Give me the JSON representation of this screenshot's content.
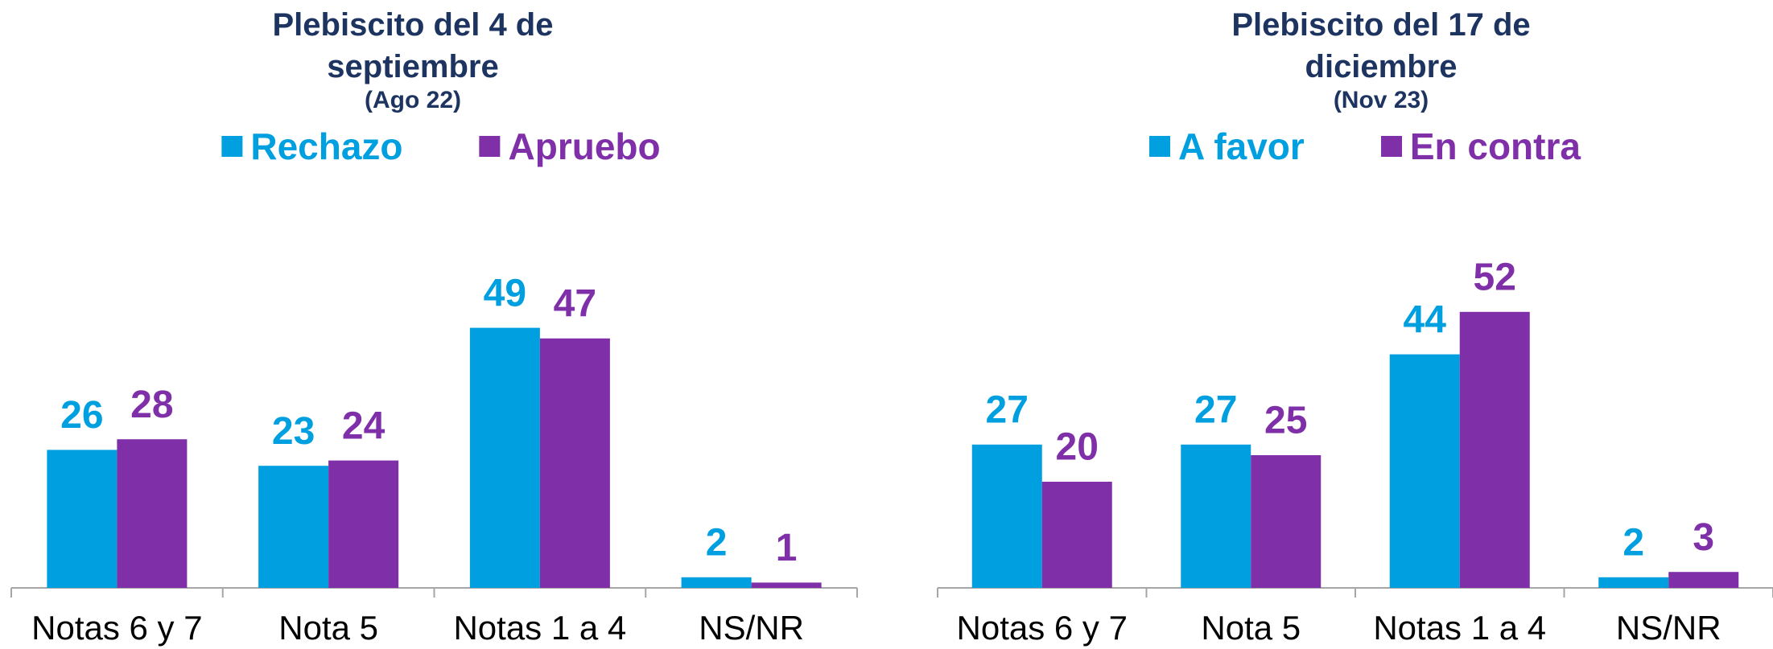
{
  "chart_data": [
    {
      "type": "bar",
      "title": "Plebiscito del 4 de septiembre",
      "subtitle": "(Ago 22)",
      "categories": [
        "Notas 6 y 7",
        "Nota 5",
        "Notas 1 a 4",
        "NS/NR"
      ],
      "series": [
        {
          "name": "Rechazo",
          "color": "#009fdf",
          "values": [
            26,
            23,
            49,
            2
          ]
        },
        {
          "name": "Apruebo",
          "color": "#7f2fa8",
          "values": [
            28,
            24,
            47,
            1
          ]
        }
      ]
    },
    {
      "type": "bar",
      "title": "Plebiscito del 17 de diciembre",
      "subtitle": "(Nov 23)",
      "categories": [
        "Notas 6 y 7",
        "Nota 5",
        "Notas 1 a 4",
        "NS/NR"
      ],
      "series": [
        {
          "name": "A favor",
          "color": "#009fdf",
          "values": [
            27,
            27,
            44,
            2
          ]
        },
        {
          "name": "En contra",
          "color": "#7f2fa8",
          "values": [
            20,
            25,
            52,
            3
          ]
        }
      ]
    }
  ]
}
